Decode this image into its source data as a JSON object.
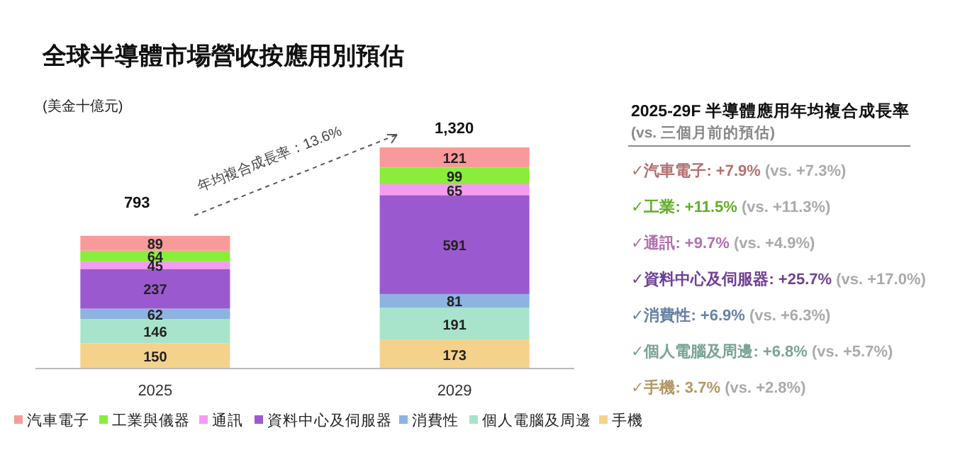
{
  "chart_data": {
    "type": "bar",
    "title": "全球半導體市場營收按應用別預估",
    "stacked": true,
    "data_labels": true,
    "legend": "bottom",
    "categories": [
      "2025",
      "2029"
    ],
    "series": [
      {
        "name": "手機",
        "color": "#f5d28c",
        "values": [
          150,
          173
        ]
      },
      {
        "name": "個人電腦及周邊",
        "color": "#a8e4cc",
        "values": [
          146,
          191
        ]
      },
      {
        "name": "消費性",
        "color": "#8db3e2",
        "values": [
          62,
          81
        ]
      },
      {
        "name": "資料中心及伺服器",
        "color": "#9b59d0",
        "values": [
          237,
          591
        ]
      },
      {
        "name": "通訊",
        "color": "#f59cf2",
        "values": [
          45,
          65
        ]
      },
      {
        "name": "工業與儀器",
        "color": "#88ee3a",
        "values": [
          64,
          99
        ]
      },
      {
        "name": "汽車電子",
        "color": "#f99a9a",
        "values": [
          89,
          121
        ]
      }
    ],
    "totals": [
      "793",
      "1,320"
    ],
    "annotations": [
      "(美金十億元)",
      "年均複合成長率：13.6%",
      "2025-29F 半導體應用年均複合成長率",
      "(vs. 三個月前的預估)",
      "✓汽車電子: +7.9% (vs. +7.3%)",
      "✓工業: +11.5% (vs. +11.3%)",
      "✓通訊: +9.7% (vs. +4.9%)",
      "✓資料中心及伺服器: +25.7% (vs. +17.0%)",
      "✓消費性: +6.9% (vs. +6.3%)",
      "✓個人電腦及周邊: +6.8% (vs. +5.7%)",
      "✓手機: 3.7% (vs. +2.8%)"
    ]
  }
}
